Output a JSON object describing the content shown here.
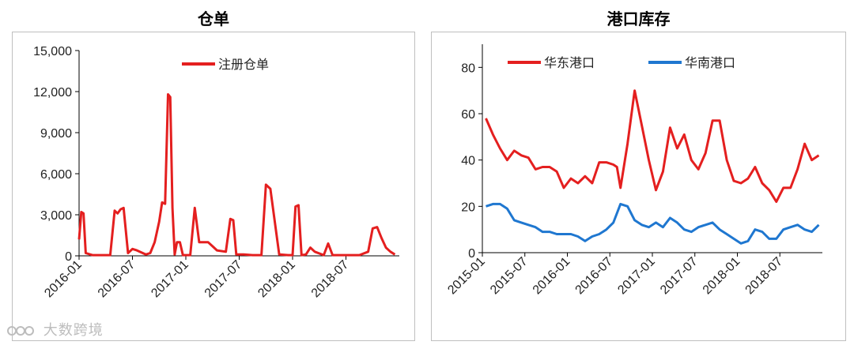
{
  "watermark": {
    "text": "大数跨境",
    "logo_icon": "data-logo-icon"
  },
  "chart_data": [
    {
      "type": "line",
      "title": "仓单",
      "xlabel": "",
      "ylabel": "",
      "x_ticks": [
        "2016-01",
        "2016-07",
        "2017-01",
        "2017-07",
        "2018-01",
        "2018-07"
      ],
      "y_ticks": [
        "0",
        "3,000",
        "6,000",
        "9,000",
        "12,000",
        "15,000"
      ],
      "ylim": [
        0,
        15000
      ],
      "x_range": [
        "2016-01",
        "2018-12"
      ],
      "legend_position": "top",
      "grid": false,
      "series": [
        {
          "name": "注册仓单",
          "color": "#e41f1f",
          "points": [
            [
              "2016-01",
              1200
            ],
            [
              "2016-01",
              3200
            ],
            [
              "2016-01",
              3100
            ],
            [
              "2016-01",
              200
            ],
            [
              "2016-02",
              50
            ],
            [
              "2016-03",
              50
            ],
            [
              "2016-04",
              50
            ],
            [
              "2016-05",
              3300
            ],
            [
              "2016-05",
              3100
            ],
            [
              "2016-05",
              3400
            ],
            [
              "2016-06",
              3500
            ],
            [
              "2016-06",
              200
            ],
            [
              "2016-07",
              500
            ],
            [
              "2016-07",
              400
            ],
            [
              "2016-08",
              100
            ],
            [
              "2016-09",
              200
            ],
            [
              "2016-09",
              1000
            ],
            [
              "2016-10",
              2500
            ],
            [
              "2016-10",
              3900
            ],
            [
              "2016-10",
              3800
            ],
            [
              "2016-11",
              11800
            ],
            [
              "2016-11",
              11600
            ],
            [
              "2016-11",
              3500
            ],
            [
              "2016-11",
              100
            ],
            [
              "2016-12",
              1000
            ],
            [
              "2016-12",
              1000
            ],
            [
              "2016-12",
              50
            ],
            [
              "2017-01",
              50
            ],
            [
              "2017-01",
              50
            ],
            [
              "2017-02",
              3500
            ],
            [
              "2017-02",
              1000
            ],
            [
              "2017-03",
              1000
            ],
            [
              "2017-04",
              700
            ],
            [
              "2017-04",
              400
            ],
            [
              "2017-05",
              300
            ],
            [
              "2017-06",
              2700
            ],
            [
              "2017-06",
              2600
            ],
            [
              "2017-06",
              100
            ],
            [
              "2017-07",
              100
            ],
            [
              "2017-08",
              50
            ],
            [
              "2017-09",
              50
            ],
            [
              "2017-10",
              5200
            ],
            [
              "2017-10",
              4900
            ],
            [
              "2017-11",
              100
            ],
            [
              "2017-12",
              50
            ],
            [
              "2018-01",
              50
            ],
            [
              "2018-01",
              3600
            ],
            [
              "2018-01",
              3700
            ],
            [
              "2018-02",
              50
            ],
            [
              "2018-02",
              100
            ],
            [
              "2018-03",
              600
            ],
            [
              "2018-03",
              300
            ],
            [
              "2018-04",
              50
            ],
            [
              "2018-05",
              900
            ],
            [
              "2018-05",
              50
            ],
            [
              "2018-06",
              50
            ],
            [
              "2018-07",
              50
            ],
            [
              "2018-08",
              50
            ],
            [
              "2018-09",
              300
            ],
            [
              "2018-10",
              2000
            ],
            [
              "2018-10",
              2100
            ],
            [
              "2018-11",
              1300
            ],
            [
              "2018-11",
              600
            ],
            [
              "2018-12",
              300
            ],
            [
              "2018-12",
              100
            ]
          ]
        }
      ]
    },
    {
      "type": "line",
      "title": "港口库存",
      "xlabel": "",
      "ylabel": "",
      "x_ticks": [
        "2015-01",
        "2015-07",
        "2016-01",
        "2016-07",
        "2017-01",
        "2017-07",
        "2018-01",
        "2018-07"
      ],
      "y_ticks": [
        "0",
        "20",
        "40",
        "60",
        "80"
      ],
      "ylim": [
        0,
        90
      ],
      "x_range": [
        "2015-01",
        "2018-12"
      ],
      "legend_position": "top",
      "grid": false,
      "series": [
        {
          "name": "华东港口",
          "color": "#e41f1f",
          "points": [
            [
              "2015-01",
              58
            ],
            [
              "2015-02",
              51
            ],
            [
              "2015-03",
              45
            ],
            [
              "2015-04",
              40
            ],
            [
              "2015-05",
              44
            ],
            [
              "2015-06",
              42
            ],
            [
              "2015-07",
              41
            ],
            [
              "2015-08",
              36
            ],
            [
              "2015-09",
              37
            ],
            [
              "2015-10",
              37
            ],
            [
              "2015-11",
              35
            ],
            [
              "2015-12",
              28
            ],
            [
              "2016-01",
              32
            ],
            [
              "2016-02",
              30
            ],
            [
              "2016-03",
              33
            ],
            [
              "2016-04",
              30
            ],
            [
              "2016-05",
              39
            ],
            [
              "2016-06",
              39
            ],
            [
              "2016-07",
              38
            ],
            [
              "2016-08",
              37
            ],
            [
              "2016-08",
              28
            ],
            [
              "2016-09",
              47
            ],
            [
              "2016-10",
              70
            ],
            [
              "2016-11",
              55
            ],
            [
              "2016-12",
              40
            ],
            [
              "2017-01",
              27
            ],
            [
              "2017-02",
              35
            ],
            [
              "2017-03",
              54
            ],
            [
              "2017-04",
              45
            ],
            [
              "2017-05",
              51
            ],
            [
              "2017-06",
              40
            ],
            [
              "2017-07",
              36
            ],
            [
              "2017-08",
              43
            ],
            [
              "2017-09",
              57
            ],
            [
              "2017-10",
              57
            ],
            [
              "2017-11",
              40
            ],
            [
              "2017-12",
              31
            ],
            [
              "2018-01",
              30
            ],
            [
              "2018-02",
              32
            ],
            [
              "2018-03",
              37
            ],
            [
              "2018-04",
              30
            ],
            [
              "2018-05",
              27
            ],
            [
              "2018-06",
              22
            ],
            [
              "2018-07",
              28
            ],
            [
              "2018-08",
              28
            ],
            [
              "2018-09",
              36
            ],
            [
              "2018-10",
              47
            ],
            [
              "2018-11",
              40
            ],
            [
              "2018-12",
              42
            ]
          ]
        },
        {
          "name": "华南港口",
          "color": "#1f77d0",
          "points": [
            [
              "2015-01",
              20
            ],
            [
              "2015-02",
              21
            ],
            [
              "2015-03",
              21
            ],
            [
              "2015-04",
              19
            ],
            [
              "2015-05",
              14
            ],
            [
              "2015-06",
              13
            ],
            [
              "2015-07",
              12
            ],
            [
              "2015-08",
              11
            ],
            [
              "2015-09",
              9
            ],
            [
              "2015-10",
              9
            ],
            [
              "2015-11",
              8
            ],
            [
              "2015-12",
              8
            ],
            [
              "2016-01",
              8
            ],
            [
              "2016-02",
              7
            ],
            [
              "2016-03",
              5
            ],
            [
              "2016-04",
              7
            ],
            [
              "2016-05",
              8
            ],
            [
              "2016-06",
              10
            ],
            [
              "2016-07",
              13
            ],
            [
              "2016-08",
              21
            ],
            [
              "2016-09",
              20
            ],
            [
              "2016-10",
              14
            ],
            [
              "2016-11",
              12
            ],
            [
              "2016-12",
              11
            ],
            [
              "2017-01",
              13
            ],
            [
              "2017-02",
              11
            ],
            [
              "2017-03",
              15
            ],
            [
              "2017-04",
              13
            ],
            [
              "2017-05",
              10
            ],
            [
              "2017-06",
              9
            ],
            [
              "2017-07",
              11
            ],
            [
              "2017-08",
              12
            ],
            [
              "2017-09",
              13
            ],
            [
              "2017-10",
              10
            ],
            [
              "2017-11",
              8
            ],
            [
              "2017-12",
              6
            ],
            [
              "2018-01",
              4
            ],
            [
              "2018-02",
              5
            ],
            [
              "2018-03",
              10
            ],
            [
              "2018-04",
              9
            ],
            [
              "2018-05",
              6
            ],
            [
              "2018-06",
              6
            ],
            [
              "2018-07",
              10
            ],
            [
              "2018-08",
              11
            ],
            [
              "2018-09",
              12
            ],
            [
              "2018-10",
              10
            ],
            [
              "2018-11",
              9
            ],
            [
              "2018-12",
              12
            ]
          ]
        }
      ]
    }
  ]
}
